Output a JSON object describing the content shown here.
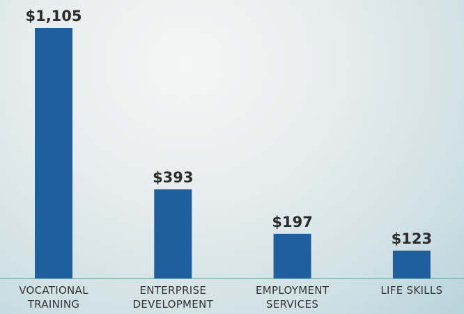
{
  "chart_data": {
    "type": "bar",
    "categories": [
      "VOCATIONAL TRAINING",
      "ENTERPRISE DEVELOPMENT",
      "EMPLOYMENT SERVICES",
      "LIFE SKILLS"
    ],
    "values": [
      1105,
      393,
      197,
      123
    ],
    "value_labels": [
      "$1,105",
      "$393",
      "$197",
      "$123"
    ],
    "color": "#1f5fa0"
  }
}
